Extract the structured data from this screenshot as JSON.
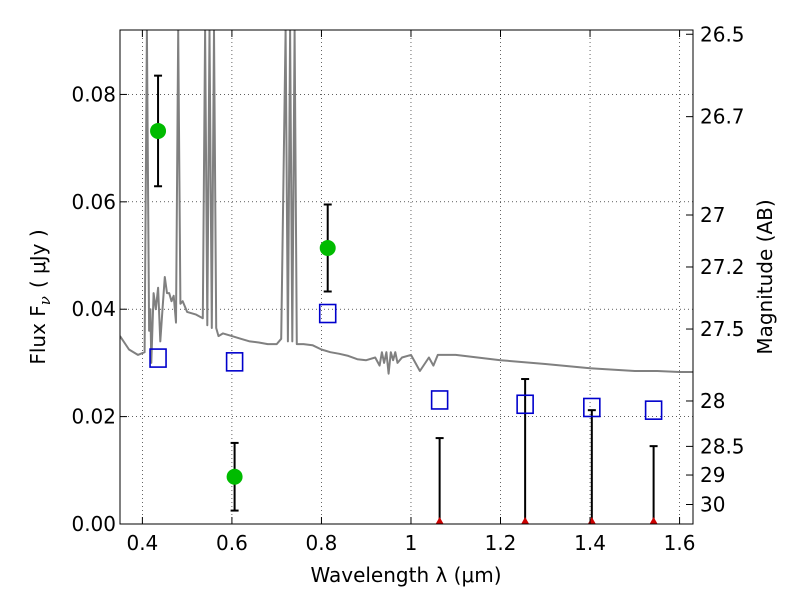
{
  "chart_data": {
    "type": "scatter",
    "xlabel": "Wavelength  λ (μm)",
    "ylabel": "Flux  F",
    "ylabel_sub": "ν",
    "ylabel_unit": "( μJy )",
    "y2label": "Magnitude (AB)",
    "xlim": [
      0.35,
      1.63
    ],
    "ylim": [
      0.0,
      0.092
    ],
    "x_ticks": [
      0.4,
      0.6,
      0.8,
      1.0,
      1.2,
      1.4,
      1.6
    ],
    "x_tick_labels": [
      "0.4",
      "0.6",
      "0.8",
      "1",
      "1.2",
      "1.4",
      "1.6"
    ],
    "y_ticks": [
      0.0,
      0.02,
      0.04,
      0.06,
      0.08
    ],
    "y_tick_labels": [
      "0.00",
      "0.02",
      "0.04",
      "0.06",
      "0.08"
    ],
    "y2_ticks": [
      26.5,
      26.7,
      27.0,
      27.2,
      27.5,
      28.0,
      28.5,
      29.0,
      30.0
    ],
    "y2_tick_labels": [
      "26.5",
      "26.7",
      "27",
      "27.2",
      "27.5",
      "28",
      "28.5",
      "29",
      "30"
    ],
    "grid": true,
    "colors": {
      "detections": "#00bb00",
      "model_points": "#0000cc",
      "upper_limits": "#cc0000",
      "error_bars": "#000000",
      "spectrum": "#808080"
    },
    "series": [
      {
        "kind": "detections",
        "x": [
          0.435,
          0.606,
          0.814
        ],
        "y": [
          0.0732,
          0.0088,
          0.0514
        ],
        "yerr": [
          0.0103,
          0.0063,
          0.0081
        ]
      },
      {
        "kind": "upper_limits",
        "x": [
          1.064,
          1.255,
          1.404,
          1.542
        ],
        "y": [
          0.0,
          0.0,
          0.0,
          0.0
        ],
        "yerr": [
          0.016,
          0.027,
          0.0212,
          0.0145
        ]
      },
      {
        "kind": "model_points",
        "x": [
          0.435,
          0.606,
          0.814,
          1.064,
          1.255,
          1.404,
          1.542
        ],
        "y": [
          0.0309,
          0.0302,
          0.0392,
          0.0231,
          0.0223,
          0.0217,
          0.0212
        ]
      },
      {
        "kind": "spectrum",
        "x": [
          0.35,
          0.37,
          0.39,
          0.405,
          0.41,
          0.415,
          0.418,
          0.42,
          0.425,
          0.43,
          0.435,
          0.44,
          0.445,
          0.45,
          0.455,
          0.46,
          0.465,
          0.47,
          0.475,
          0.48,
          0.485,
          0.49,
          0.5,
          0.52,
          0.535,
          0.54,
          0.545,
          0.55,
          0.555,
          0.56,
          0.565,
          0.57,
          0.58,
          0.6,
          0.62,
          0.64,
          0.66,
          0.68,
          0.7,
          0.71,
          0.72,
          0.725,
          0.73,
          0.735,
          0.74,
          0.745,
          0.75,
          0.76,
          0.78,
          0.8,
          0.82,
          0.84,
          0.86,
          0.88,
          0.9,
          0.92,
          0.93,
          0.935,
          0.94,
          0.945,
          0.95,
          0.955,
          0.96,
          0.965,
          0.97,
          0.98,
          1.0,
          1.02,
          1.04,
          1.05,
          1.06,
          1.1,
          1.2,
          1.3,
          1.4,
          1.5,
          1.55,
          1.6,
          1.63
        ],
        "y": [
          0.035,
          0.0325,
          0.0315,
          0.032,
          0.092,
          0.036,
          0.04,
          0.03,
          0.043,
          0.04,
          0.044,
          0.034,
          0.04,
          0.046,
          0.043,
          0.043,
          0.0415,
          0.0425,
          0.0375,
          0.092,
          0.041,
          0.0415,
          0.0395,
          0.039,
          0.0383,
          0.092,
          0.037,
          0.092,
          0.0365,
          0.092,
          0.0365,
          0.035,
          0.0355,
          0.035,
          0.0345,
          0.034,
          0.0338,
          0.0335,
          0.0335,
          0.0345,
          0.092,
          0.034,
          0.092,
          0.034,
          0.092,
          0.0335,
          0.0335,
          0.0335,
          0.0333,
          0.0325,
          0.032,
          0.0317,
          0.0313,
          0.0307,
          0.0305,
          0.031,
          0.0295,
          0.032,
          0.03,
          0.032,
          0.028,
          0.032,
          0.0305,
          0.032,
          0.03,
          0.031,
          0.0315,
          0.0285,
          0.031,
          0.0295,
          0.0315,
          0.0315,
          0.0305,
          0.0298,
          0.029,
          0.0285,
          0.0285,
          0.0283,
          0.0283
        ]
      }
    ]
  }
}
